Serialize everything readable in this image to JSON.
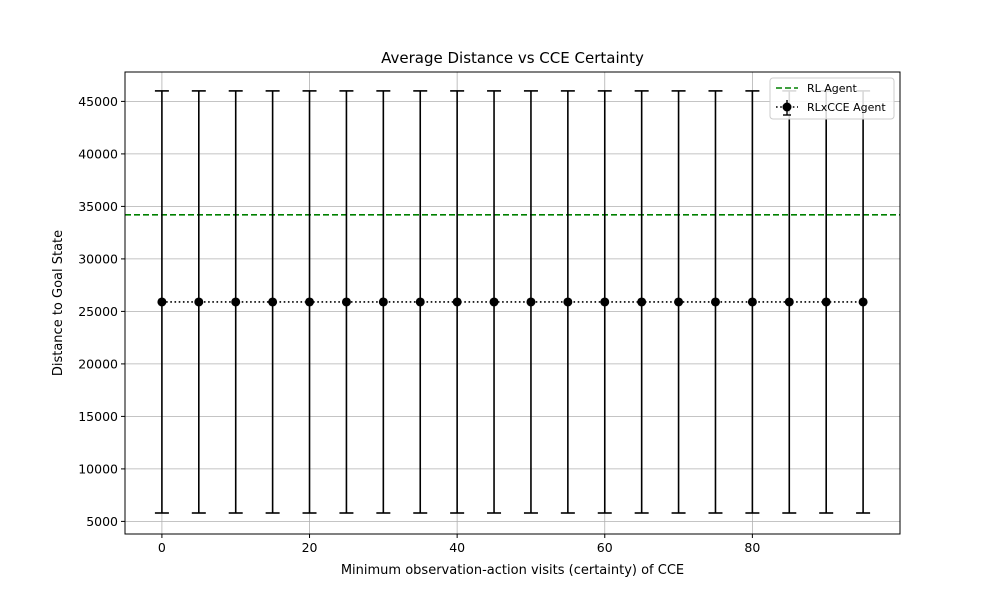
{
  "chart_data": {
    "type": "line",
    "title": "Average Distance vs CCE Certainty",
    "xlabel": "Minimum observation-action visits (certainty) of CCE",
    "ylabel": "Distance to Goal State",
    "xlim": [
      -5,
      100
    ],
    "ylim": [
      3800,
      47800
    ],
    "x_ticks": [
      "0",
      "20",
      "40",
      "60",
      "80"
    ],
    "y_ticks": [
      "5000",
      "10000",
      "15000",
      "20000",
      "25000",
      "30000",
      "35000",
      "40000",
      "45000"
    ],
    "grid": true,
    "legend_position": "top-right",
    "series": [
      {
        "name": "RLxCCE Agent",
        "x": [
          0,
          5,
          10,
          15,
          20,
          25,
          30,
          35,
          40,
          45,
          50,
          55,
          60,
          65,
          70,
          75,
          80,
          85,
          90,
          95
        ],
        "y": [
          25900,
          25900,
          25900,
          25900,
          25900,
          25900,
          25900,
          25900,
          25900,
          25900,
          25900,
          25900,
          25900,
          25900,
          25900,
          25900,
          25900,
          25900,
          25900,
          25900
        ],
        "yerr": [
          20100,
          20100,
          20100,
          20100,
          20100,
          20100,
          20100,
          20100,
          20100,
          20100,
          20100,
          20100,
          20100,
          20100,
          20100,
          20100,
          20100,
          20100,
          20100,
          20100
        ],
        "color": "#000000",
        "linestyle": "dotted",
        "marker": "circle"
      }
    ],
    "reference_lines": [
      {
        "name": "RL Agent",
        "y": 34200,
        "color": "#008000",
        "linestyle": "dashed"
      }
    ]
  }
}
